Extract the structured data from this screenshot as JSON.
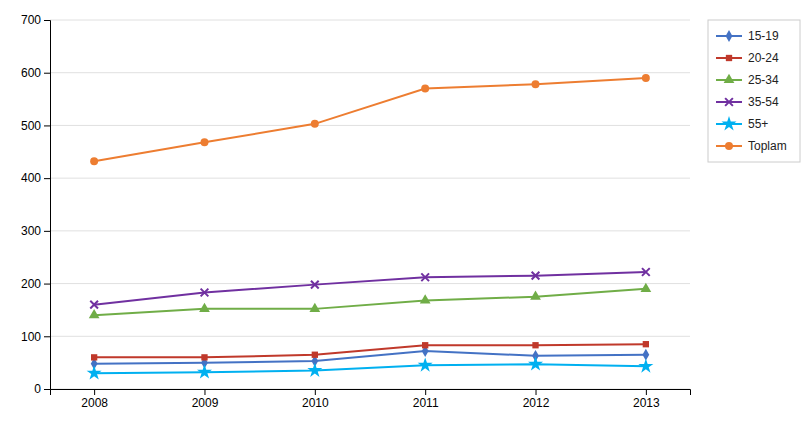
{
  "chart_data": {
    "type": "line",
    "x": [
      2008,
      2009,
      2010,
      2011,
      2012,
      2013
    ],
    "xlim": [
      2007.6,
      2013.4
    ],
    "xticks": [
      2008,
      2009,
      2010,
      2011,
      2012,
      2013
    ],
    "ylim": [
      0,
      700
    ],
    "yticks": [
      0,
      100,
      200,
      300,
      400,
      500,
      600,
      700
    ],
    "grid": true,
    "legend": "right",
    "series": [
      {
        "name": "15-19",
        "color": "#4472C4",
        "marker": "diamond",
        "values": [
          48,
          50,
          53,
          72,
          63,
          65
        ]
      },
      {
        "name": "20-24",
        "color": "#C0392B",
        "marker": "square",
        "values": [
          60,
          60,
          65,
          83,
          83,
          85
        ]
      },
      {
        "name": "25-34",
        "color": "#70AD47",
        "marker": "triangle",
        "values": [
          140,
          152,
          152,
          168,
          175,
          190
        ]
      },
      {
        "name": "35-54",
        "color": "#7030A0",
        "marker": "x",
        "values": [
          160,
          183,
          198,
          212,
          215,
          222
        ]
      },
      {
        "name": "55+",
        "color": "#00B0F0",
        "marker": "star",
        "values": [
          30,
          32,
          35,
          45,
          47,
          43
        ]
      },
      {
        "name": "Toplam",
        "color": "#ED7D31",
        "marker": "circle",
        "values": [
          432,
          468,
          503,
          570,
          578,
          590
        ]
      }
    ]
  }
}
